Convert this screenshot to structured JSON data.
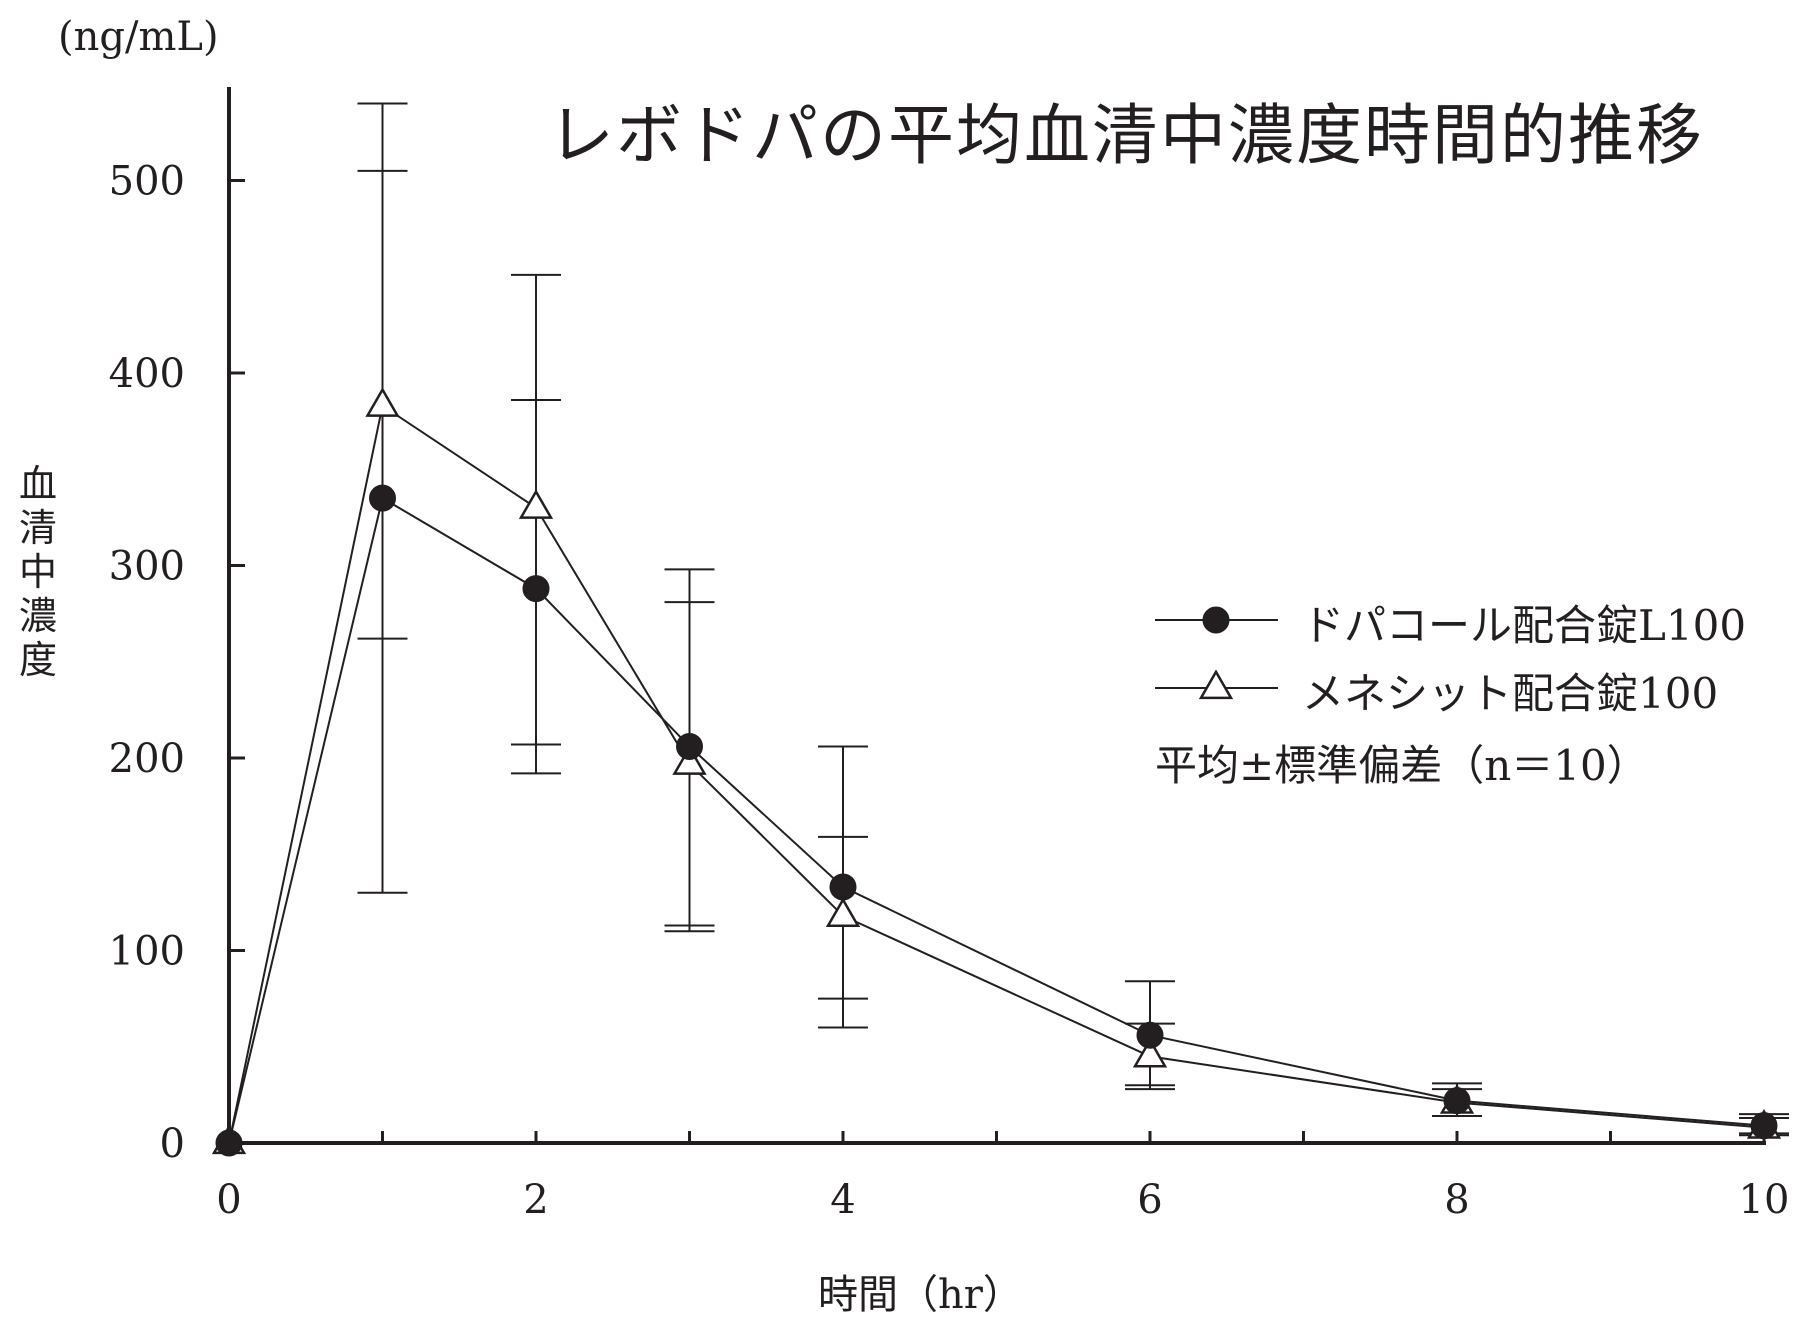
{
  "chart_data": {
    "type": "line",
    "title": "レボドパの平均血清中濃度時間的推移",
    "ylabel": "血清中濃度",
    "yunit": "(ng/mL)",
    "xlabel": "時間（hr）",
    "xlim": [
      0,
      10
    ],
    "ylim": [
      0,
      550
    ],
    "xticks_major": [
      0,
      2,
      4,
      6,
      8,
      10
    ],
    "xticks_minor": [
      1,
      3,
      5,
      7,
      9
    ],
    "yticks": [
      0,
      100,
      200,
      300,
      400,
      500
    ],
    "grid": false,
    "legend_position": "right",
    "note": "平均±標準偏差（n＝10）",
    "series": [
      {
        "name": "ドパコール配合錠L100",
        "marker": "filled-circle",
        "x": [
          0,
          1,
          2,
          3,
          4,
          6,
          8,
          10
        ],
        "y": [
          0,
          335,
          288,
          206,
          133,
          56,
          22,
          9
        ],
        "err_upper": [
          0,
          505,
          386,
          298,
          206,
          84,
          31,
          15
        ],
        "err_lower": [
          0,
          130,
          207,
          113,
          60,
          28,
          14,
          5
        ]
      },
      {
        "name": "メネシット配合錠100",
        "marker": "open-triangle",
        "x": [
          0,
          1,
          2,
          3,
          4,
          6,
          8,
          10
        ],
        "y": [
          0,
          383,
          330,
          197,
          118,
          45,
          21,
          8
        ],
        "err_upper": [
          0,
          540,
          451,
          281,
          159,
          62,
          28,
          13
        ],
        "err_lower": [
          0,
          262,
          192,
          110,
          75,
          30,
          14,
          4
        ]
      }
    ]
  }
}
